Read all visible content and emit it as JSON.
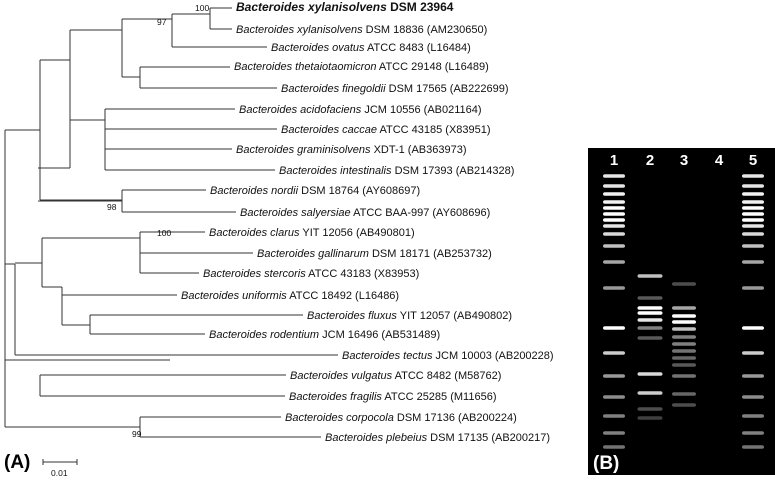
{
  "taxa": [
    {
      "genus": "Bacteroides xylanisolvens",
      "rest": " DSM 23964",
      "bold": true
    },
    {
      "genus": "Bacteroides xylanisolvens",
      "rest": " DSM 18836 (AM230650)"
    },
    {
      "genus": "Bacteroides ovatus",
      "rest": " ATCC 8483 (L16484)"
    },
    {
      "genus": "Bacteroides thetaiotaomicron",
      "rest": " ATCC 29148 (L16489)"
    },
    {
      "genus": "Bacteroides finegoldii",
      "rest": " DSM 17565 (AB222699)"
    },
    {
      "genus": "Bacteroides acidofaciens",
      "rest": " JCM 10556 (AB021164)"
    },
    {
      "genus": "Bacteroides caccae",
      "rest": " ATCC 43185 (X83951)"
    },
    {
      "genus": "Bacteroides graminisolvens",
      "rest": " XDT-1 (AB363973)"
    },
    {
      "genus": "Bacteroides intestinalis",
      "rest": " DSM 17393 (AB214328)"
    },
    {
      "genus": "Bacteroides nordii",
      "rest": " DSM 18764 (AY608697)"
    },
    {
      "genus": "Bacteroides salyersiae",
      "rest": " ATCC BAA-997 (AY608696)"
    },
    {
      "genus": "Bacteroides clarus",
      "rest": " YIT 12056 (AB490801)"
    },
    {
      "genus": "Bacteroides gallinarum",
      "rest": " DSM 18171 (AB253732)"
    },
    {
      "genus": "Bacteroides stercoris",
      "rest": " ATCC 43183 (X83953)"
    },
    {
      "genus": "Bacteroides uniformis",
      "rest": " ATCC 18492 (L16486)"
    },
    {
      "genus": "Bacteroides fluxus",
      "rest": " YIT 12057 (AB490802)"
    },
    {
      "genus": "Bacteroides rodentium",
      "rest": " JCM 16496 (AB531489)"
    },
    {
      "genus": "Bacteroides tectus",
      "rest": " JCM 10003 (AB200228)"
    },
    {
      "genus": "Bacteroides vulgatus",
      "rest": " ATCC 8482 (M58762)"
    },
    {
      "genus": "Bacteroides fragilis",
      "rest": " ATCC 25285 (M11656)"
    },
    {
      "genus": "Bacteroides corpocola",
      "rest": " DSM 17136 (AB200224)"
    },
    {
      "genus": "Bacteroides plebeius",
      "rest": " DSM 17135 (AB200217)"
    }
  ],
  "bootstraps": [
    "100",
    "97",
    "98",
    "100",
    "99"
  ],
  "scale_bar_label": "0.01",
  "panel_labels": {
    "a": "(A)",
    "b": "(B)"
  },
  "gel_lanes": [
    "1",
    "2",
    "3",
    "4",
    "5"
  ],
  "colors": {
    "tree_line": "#333333",
    "gel_background": "#000000",
    "band": "#ffffff"
  }
}
